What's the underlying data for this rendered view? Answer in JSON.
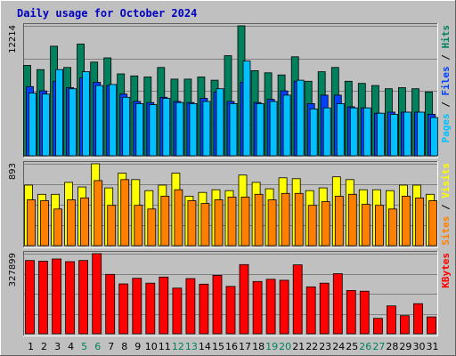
{
  "title": "Daily usage for October 2024",
  "colors": {
    "background": "#c0c0c0",
    "title": "#0000c0",
    "hits": "#00805c",
    "files": "#0040ff",
    "pages": "#00c0ff",
    "visits": "#ffff00",
    "sites": "#ff8000",
    "kbytes": "#ff0000",
    "weekend_label": "#00805c",
    "weekday_label": "#000000"
  },
  "chart_data": [
    {
      "type": "bar",
      "name": "hits-files-pages",
      "max_label": "12214",
      "ylim": [
        0,
        12214
      ],
      "grid": true,
      "right_label": {
        "parts": [
          "Pages",
          " / ",
          "Files",
          " / ",
          "Hits"
        ]
      },
      "categories": [
        "1",
        "2",
        "3",
        "4",
        "5",
        "6",
        "7",
        "8",
        "9",
        "10",
        "11",
        "12",
        "13",
        "14",
        "15",
        "16",
        "17",
        "18",
        "19",
        "20",
        "21",
        "22",
        "23",
        "24",
        "25",
        "26",
        "27",
        "28",
        "29",
        "30",
        "31"
      ],
      "weekend_days": [
        "5",
        "6",
        "12",
        "13",
        "19",
        "20",
        "26",
        "27"
      ],
      "series": [
        {
          "name": "Hits",
          "values": [
            8500,
            8100,
            10300,
            8300,
            10500,
            8800,
            9200,
            7700,
            7500,
            7400,
            8300,
            7200,
            7200,
            7400,
            7100,
            9400,
            12214,
            8000,
            7800,
            7600,
            9300,
            7000,
            7900,
            8300,
            7000,
            6800,
            6600,
            6300,
            6400,
            6300,
            6000
          ]
        },
        {
          "name": "Files",
          "values": [
            6500,
            6100,
            7000,
            6400,
            7300,
            6900,
            6600,
            5800,
            5100,
            5000,
            5500,
            5100,
            5000,
            5400,
            6000,
            5100,
            6900,
            5000,
            5300,
            6100,
            7000,
            4900,
            5700,
            5700,
            4600,
            4500,
            4000,
            4100,
            4100,
            4100,
            3900
          ]
        },
        {
          "name": "Pages",
          "values": [
            5900,
            5800,
            8100,
            6300,
            7900,
            6600,
            6700,
            5500,
            4900,
            4800,
            5400,
            5000,
            4900,
            5100,
            6300,
            4900,
            8900,
            4900,
            5100,
            5700,
            7100,
            4400,
            4500,
            4900,
            4500,
            4500,
            4000,
            3900,
            4100,
            4100,
            3600
          ]
        }
      ]
    },
    {
      "type": "bar",
      "name": "visits-sites",
      "max_label": "893",
      "ylim": [
        0,
        893
      ],
      "grid": true,
      "right_label": {
        "parts": [
          "Sites",
          " / ",
          "Visits"
        ]
      },
      "categories": [
        "1",
        "2",
        "3",
        "4",
        "5",
        "6",
        "7",
        "8",
        "9",
        "10",
        "11",
        "12",
        "13",
        "14",
        "15",
        "16",
        "17",
        "18",
        "19",
        "20",
        "21",
        "22",
        "23",
        "24",
        "25",
        "26",
        "27",
        "28",
        "29",
        "30",
        "31"
      ],
      "series": [
        {
          "name": "Visits",
          "values": [
            660,
            560,
            560,
            690,
            640,
            893,
            630,
            790,
            720,
            600,
            660,
            790,
            540,
            580,
            610,
            600,
            770,
            690,
            620,
            740,
            730,
            600,
            630,
            750,
            720,
            610,
            610,
            600,
            660,
            660,
            560
          ]
        },
        {
          "name": "Sites",
          "values": [
            500,
            490,
            400,
            500,
            520,
            710,
            440,
            720,
            440,
            400,
            540,
            610,
            490,
            460,
            500,
            530,
            530,
            560,
            500,
            570,
            570,
            440,
            480,
            540,
            560,
            450,
            440,
            400,
            540,
            520,
            490
          ]
        }
      ]
    },
    {
      "type": "bar",
      "name": "kbytes",
      "max_label": "327899",
      "ylim": [
        0,
        327899
      ],
      "grid": true,
      "right_label": {
        "parts": [
          "KBytes"
        ]
      },
      "categories": [
        "1",
        "2",
        "3",
        "4",
        "5",
        "6",
        "7",
        "8",
        "9",
        "10",
        "11",
        "12",
        "13",
        "14",
        "15",
        "16",
        "17",
        "18",
        "19",
        "20",
        "21",
        "22",
        "23",
        "24",
        "25",
        "26",
        "27",
        "28",
        "29",
        "30",
        "31"
      ],
      "series": [
        {
          "name": "KBytes",
          "values": [
            300000,
            297000,
            306000,
            295000,
            300000,
            327899,
            243000,
            204000,
            227000,
            207000,
            232000,
            187000,
            226000,
            203000,
            239000,
            194000,
            283000,
            214000,
            223000,
            219000,
            282000,
            192000,
            207000,
            246000,
            177000,
            174000,
            63000,
            114000,
            74000,
            123000,
            69000
          ]
        }
      ]
    }
  ]
}
